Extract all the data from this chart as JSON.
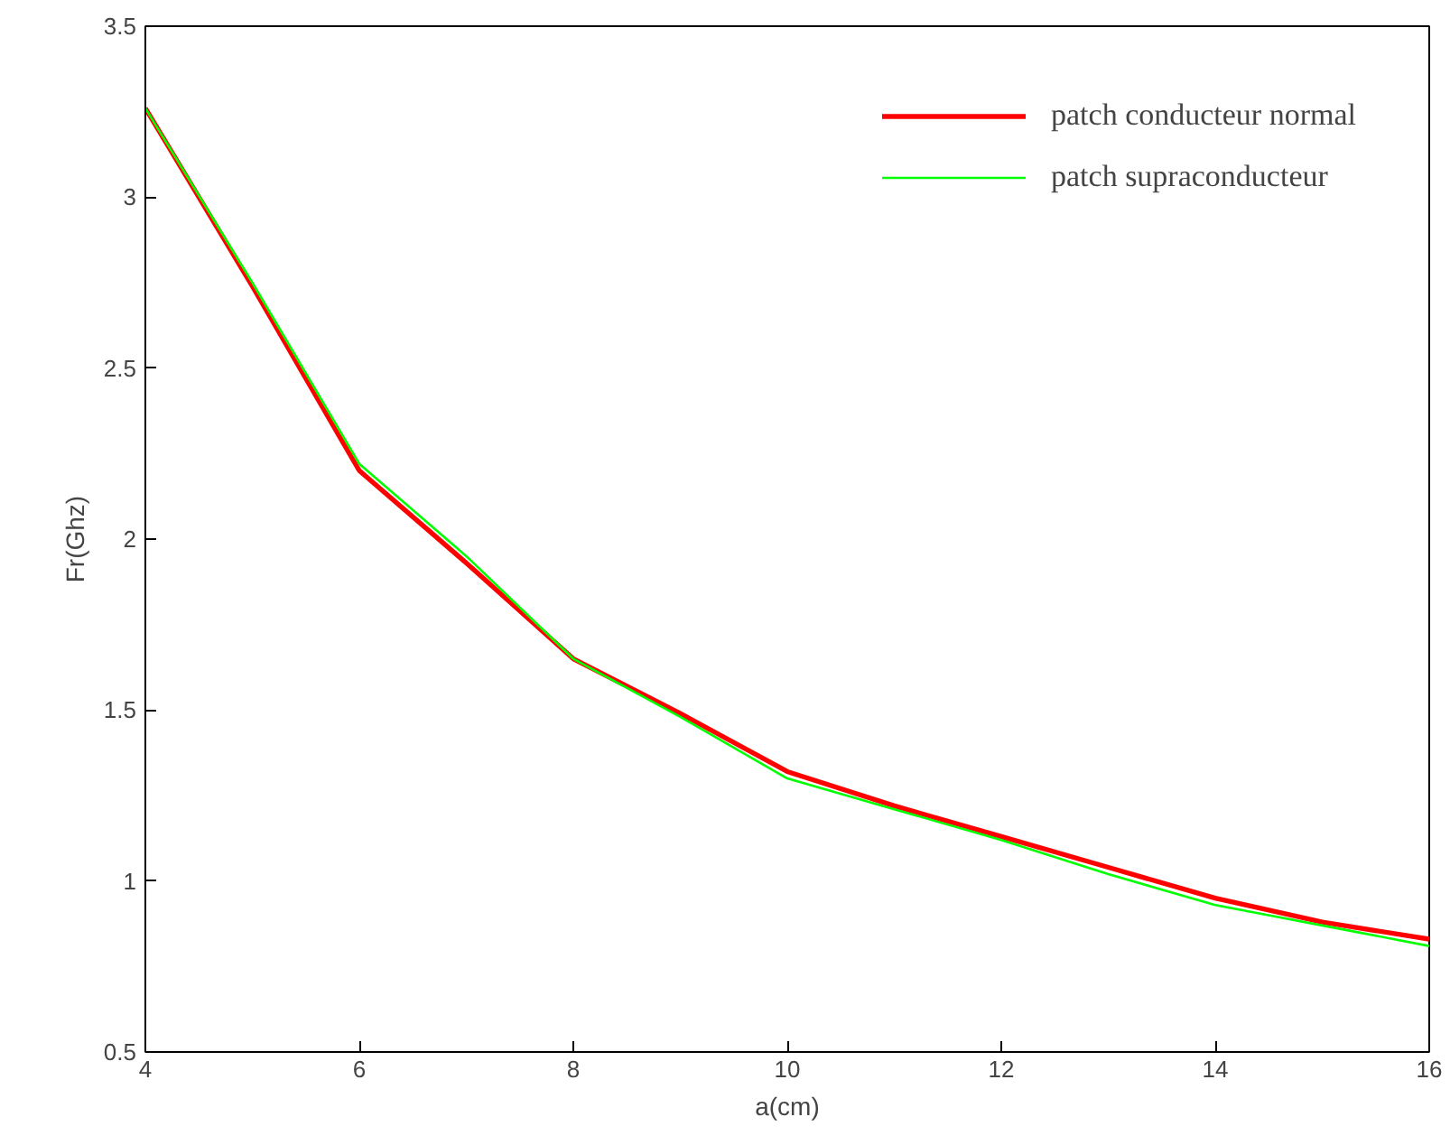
{
  "chart_data": {
    "type": "line",
    "xlabel": "a(cm)",
    "ylabel": "Fr(Ghz)",
    "x": [
      4,
      5,
      6,
      7,
      8,
      9,
      10,
      11,
      12,
      13,
      14,
      15,
      16
    ],
    "series": [
      {
        "name": "patch conducteur normal",
        "color": "#ff0000",
        "values": [
          3.26,
          2.74,
          2.2,
          1.93,
          1.65,
          1.49,
          1.32,
          1.22,
          1.13,
          1.04,
          0.95,
          0.88,
          0.83
        ]
      },
      {
        "name": "patch supraconducteur",
        "color": "#00ff00",
        "values": [
          3.26,
          2.75,
          2.22,
          1.95,
          1.65,
          1.48,
          1.3,
          1.21,
          1.12,
          1.02,
          0.93,
          0.87,
          0.81
        ]
      }
    ],
    "xlim": [
      4,
      16
    ],
    "ylim": [
      0.5,
      3.5
    ],
    "xticks": [
      4,
      6,
      8,
      10,
      12,
      14,
      16
    ],
    "yticks": [
      0.5,
      1,
      1.5,
      2,
      2.5,
      3,
      3.5
    ],
    "grid": false,
    "legend": "top right",
    "marker": "none",
    "line_style": "solid"
  }
}
